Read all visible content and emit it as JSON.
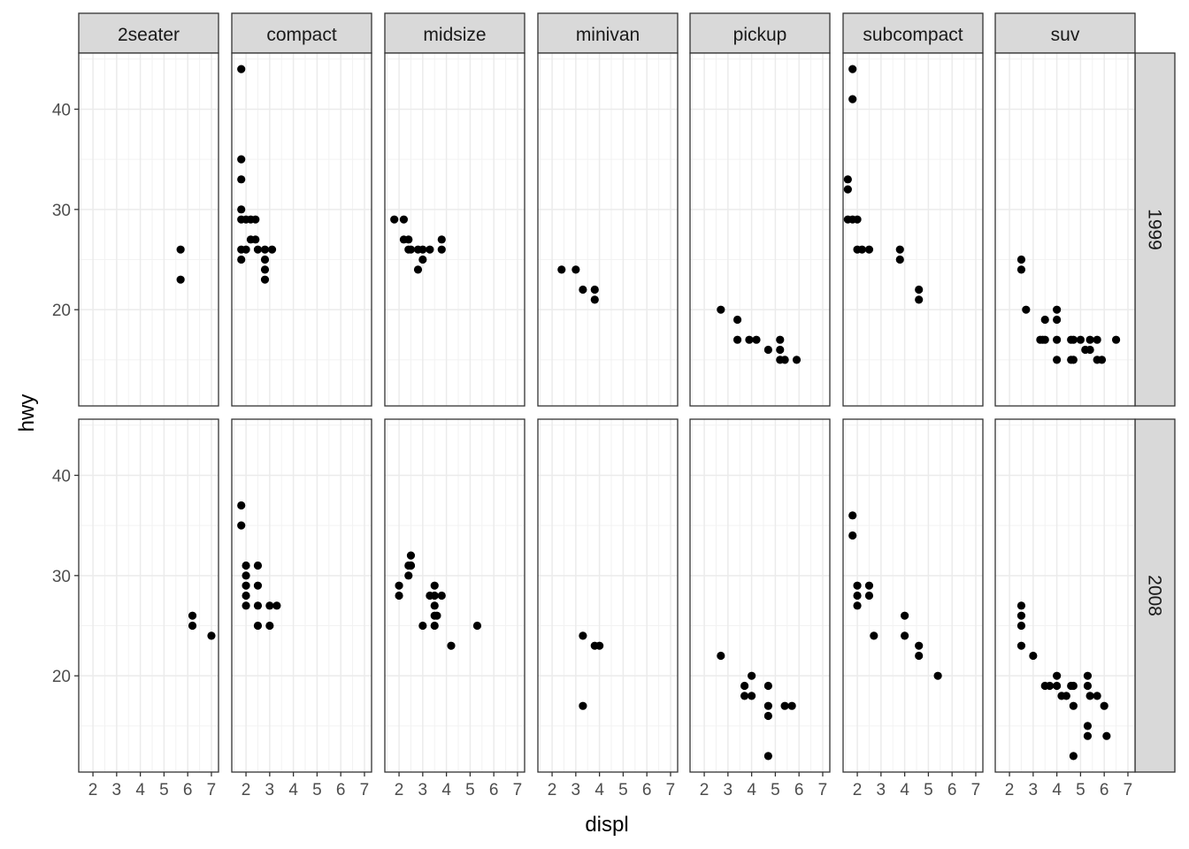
{
  "chart_data": {
    "type": "scatter",
    "xlabel": "displ",
    "ylabel": "hwy",
    "xlim": [
      1.4,
      7.3
    ],
    "ylim": [
      10.4,
      45.6
    ],
    "x_ticks": [
      2,
      3,
      4,
      5,
      6,
      7
    ],
    "y_ticks": [
      20,
      30,
      40
    ],
    "grid": true,
    "facet_columns": [
      "2seater",
      "compact",
      "midsize",
      "minivan",
      "pickup",
      "subcompact",
      "suv"
    ],
    "facet_rows": [
      "1999",
      "2008"
    ],
    "panels": [
      {
        "row": "1999",
        "col": "2seater",
        "points": [
          [
            5.7,
            26
          ],
          [
            5.7,
            23
          ]
        ]
      },
      {
        "row": "1999",
        "col": "compact",
        "points": [
          [
            1.8,
            44
          ],
          [
            1.8,
            35
          ],
          [
            1.8,
            33
          ],
          [
            1.8,
            30
          ],
          [
            1.8,
            29
          ],
          [
            1.8,
            26
          ],
          [
            1.8,
            25
          ],
          [
            2.0,
            29
          ],
          [
            2.0,
            26
          ],
          [
            2.2,
            29
          ],
          [
            2.2,
            27
          ],
          [
            2.4,
            29
          ],
          [
            2.4,
            27
          ],
          [
            2.5,
            26
          ],
          [
            2.8,
            26
          ],
          [
            2.8,
            25
          ],
          [
            2.8,
            24
          ],
          [
            2.8,
            23
          ],
          [
            3.1,
            26
          ]
        ]
      },
      {
        "row": "1999",
        "col": "midsize",
        "points": [
          [
            1.8,
            29
          ],
          [
            2.2,
            29
          ],
          [
            2.2,
            27
          ],
          [
            2.4,
            27
          ],
          [
            2.4,
            26
          ],
          [
            2.5,
            26
          ],
          [
            2.8,
            26
          ],
          [
            2.8,
            24
          ],
          [
            3.0,
            26
          ],
          [
            3.0,
            25
          ],
          [
            3.3,
            26
          ],
          [
            3.8,
            27
          ],
          [
            3.8,
            26
          ]
        ]
      },
      {
        "row": "1999",
        "col": "minivan",
        "points": [
          [
            2.4,
            24
          ],
          [
            3.0,
            24
          ],
          [
            3.3,
            22
          ],
          [
            3.8,
            22
          ],
          [
            3.8,
            21
          ]
        ]
      },
      {
        "row": "1999",
        "col": "pickup",
        "points": [
          [
            2.7,
            20
          ],
          [
            3.4,
            19
          ],
          [
            3.4,
            17
          ],
          [
            3.9,
            17
          ],
          [
            4.2,
            17
          ],
          [
            4.7,
            16
          ],
          [
            5.2,
            17
          ],
          [
            5.2,
            16
          ],
          [
            5.2,
            15
          ],
          [
            5.4,
            15
          ],
          [
            5.9,
            15
          ]
        ]
      },
      {
        "row": "1999",
        "col": "subcompact",
        "points": [
          [
            1.6,
            33
          ],
          [
            1.6,
            32
          ],
          [
            1.6,
            29
          ],
          [
            1.8,
            44
          ],
          [
            1.8,
            41
          ],
          [
            1.8,
            29
          ],
          [
            2.0,
            29
          ],
          [
            2.0,
            26
          ],
          [
            2.2,
            26
          ],
          [
            2.5,
            26
          ],
          [
            3.8,
            26
          ],
          [
            3.8,
            25
          ],
          [
            4.6,
            22
          ],
          [
            4.6,
            21
          ]
        ]
      },
      {
        "row": "1999",
        "col": "suv",
        "points": [
          [
            2.5,
            25
          ],
          [
            2.5,
            24
          ],
          [
            2.7,
            20
          ],
          [
            3.3,
            17
          ],
          [
            3.4,
            17
          ],
          [
            3.5,
            19
          ],
          [
            3.5,
            17
          ],
          [
            4.0,
            20
          ],
          [
            4.0,
            19
          ],
          [
            4.0,
            17
          ],
          [
            4.0,
            15
          ],
          [
            4.6,
            17
          ],
          [
            4.6,
            15
          ],
          [
            4.7,
            17
          ],
          [
            4.7,
            15
          ],
          [
            5.0,
            17
          ],
          [
            5.2,
            16
          ],
          [
            5.4,
            17
          ],
          [
            5.4,
            16
          ],
          [
            5.7,
            17
          ],
          [
            5.7,
            15
          ],
          [
            5.9,
            15
          ],
          [
            6.5,
            17
          ]
        ]
      },
      {
        "row": "2008",
        "col": "2seater",
        "points": [
          [
            6.2,
            26
          ],
          [
            6.2,
            25
          ],
          [
            7.0,
            24
          ]
        ]
      },
      {
        "row": "2008",
        "col": "compact",
        "points": [
          [
            1.8,
            37
          ],
          [
            1.8,
            35
          ],
          [
            2.0,
            31
          ],
          [
            2.0,
            30
          ],
          [
            2.0,
            29
          ],
          [
            2.0,
            28
          ],
          [
            2.0,
            27
          ],
          [
            2.5,
            31
          ],
          [
            2.5,
            29
          ],
          [
            2.5,
            27
          ],
          [
            2.5,
            25
          ],
          [
            3.0,
            27
          ],
          [
            3.0,
            25
          ],
          [
            3.3,
            27
          ]
        ]
      },
      {
        "row": "2008",
        "col": "midsize",
        "points": [
          [
            2.0,
            29
          ],
          [
            2.0,
            28
          ],
          [
            2.4,
            30
          ],
          [
            2.4,
            31
          ],
          [
            2.5,
            31
          ],
          [
            2.5,
            32
          ],
          [
            2.5,
            31
          ],
          [
            3.0,
            25
          ],
          [
            3.3,
            28
          ],
          [
            3.5,
            29
          ],
          [
            3.5,
            28
          ],
          [
            3.5,
            27
          ],
          [
            3.5,
            26
          ],
          [
            3.5,
            25
          ],
          [
            3.6,
            26
          ],
          [
            3.8,
            28
          ],
          [
            4.2,
            23
          ],
          [
            5.3,
            25
          ]
        ]
      },
      {
        "row": "2008",
        "col": "minivan",
        "points": [
          [
            3.3,
            24
          ],
          [
            3.3,
            17
          ],
          [
            3.8,
            23
          ],
          [
            4.0,
            23
          ]
        ]
      },
      {
        "row": "2008",
        "col": "pickup",
        "points": [
          [
            2.7,
            22
          ],
          [
            3.7,
            19
          ],
          [
            3.7,
            18
          ],
          [
            4.0,
            20
          ],
          [
            4.0,
            18
          ],
          [
            4.7,
            19
          ],
          [
            4.7,
            17
          ],
          [
            4.7,
            16
          ],
          [
            4.7,
            12
          ],
          [
            5.7,
            17
          ],
          [
            5.4,
            17
          ]
        ]
      },
      {
        "row": "2008",
        "col": "subcompact",
        "points": [
          [
            1.8,
            36
          ],
          [
            1.8,
            34
          ],
          [
            2.0,
            29
          ],
          [
            2.0,
            28
          ],
          [
            2.0,
            27
          ],
          [
            2.5,
            29
          ],
          [
            2.5,
            28
          ],
          [
            2.7,
            24
          ],
          [
            4.0,
            26
          ],
          [
            4.0,
            24
          ],
          [
            4.6,
            23
          ],
          [
            4.6,
            22
          ],
          [
            5.4,
            20
          ]
        ]
      },
      {
        "row": "2008",
        "col": "suv",
        "points": [
          [
            2.5,
            27
          ],
          [
            2.5,
            26
          ],
          [
            2.5,
            25
          ],
          [
            2.5,
            23
          ],
          [
            3.0,
            22
          ],
          [
            3.5,
            19
          ],
          [
            3.7,
            19
          ],
          [
            4.0,
            20
          ],
          [
            4.0,
            19
          ],
          [
            4.2,
            18
          ],
          [
            4.4,
            18
          ],
          [
            4.6,
            19
          ],
          [
            4.7,
            19
          ],
          [
            4.7,
            17
          ],
          [
            4.7,
            12
          ],
          [
            5.3,
            20
          ],
          [
            5.3,
            19
          ],
          [
            5.3,
            15
          ],
          [
            5.3,
            14
          ],
          [
            5.4,
            18
          ],
          [
            5.7,
            18
          ],
          [
            6.0,
            17
          ],
          [
            6.1,
            14
          ]
        ]
      }
    ]
  }
}
